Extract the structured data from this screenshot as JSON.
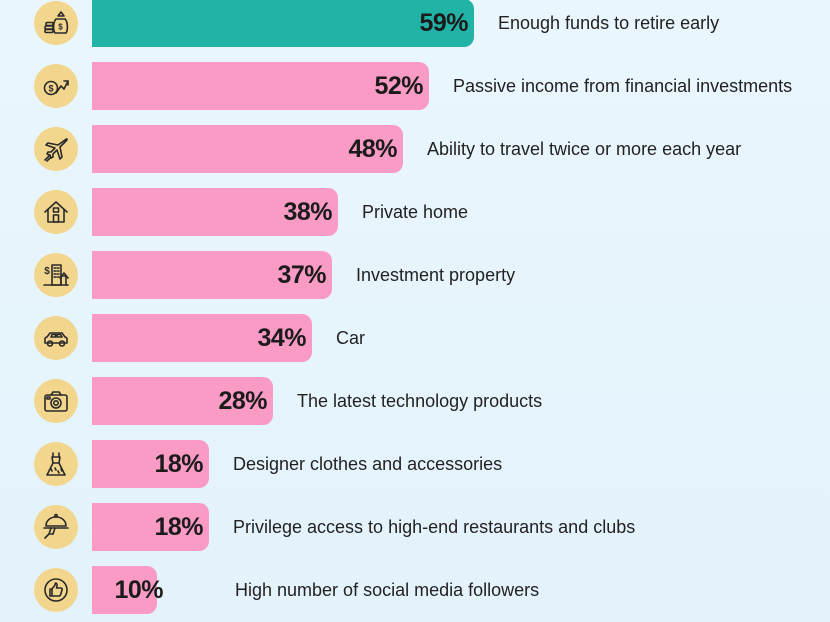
{
  "chart_data": {
    "type": "bar",
    "orientation": "horizontal",
    "unit": "%",
    "categories": [
      "Enough funds to retire early",
      "Passive income from financial investments",
      "Ability to travel twice or more each year",
      "Private home",
      "Investment property",
      "Car",
      "The latest technology products",
      "Designer clothes and accessories",
      "Privilege access to high-end restaurants and clubs",
      "High number of social media followers"
    ],
    "values": [
      59,
      52,
      48,
      38,
      37,
      34,
      28,
      18,
      18,
      10
    ],
    "value_labels": [
      "59%",
      "52%",
      "48%",
      "38%",
      "37%",
      "34%",
      "28%",
      "18%",
      "18%",
      "10%"
    ],
    "icons": [
      "money-bag-icon",
      "dollar-growth-icon",
      "airplane-icon",
      "house-icon",
      "city-building-icon",
      "car-icon",
      "camera-icon",
      "dress-icon",
      "food-cloche-icon",
      "thumbs-up-icon"
    ],
    "highlight_index": 0,
    "colors": {
      "highlight": "#22b3a7",
      "bar": "#f99bc4",
      "icon_bg": "#f2d68e",
      "icon_stroke": "#2a2a2a"
    },
    "xlim": [
      0,
      59
    ],
    "grid": false,
    "legend": "none"
  }
}
